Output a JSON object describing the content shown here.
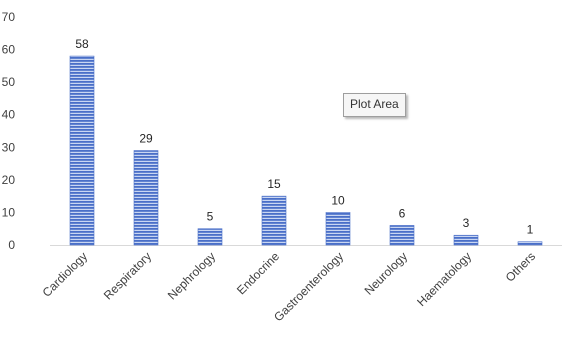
{
  "chart_data": {
    "type": "bar",
    "categories": [
      "Cardiology",
      "Respiratory",
      "Nephrology",
      "Endocrine",
      "Gastroenterology",
      "Neurology",
      "Haematology",
      "Others"
    ],
    "values": [
      58,
      29,
      5,
      15,
      10,
      6,
      3,
      1
    ],
    "title": "",
    "xlabel": "",
    "ylabel": "",
    "ylim": [
      0,
      70
    ],
    "yticks": [
      0,
      10,
      20,
      30,
      40,
      50,
      60,
      70
    ],
    "grid": false,
    "legend": "none",
    "data_labels": true,
    "bar_color": "#4a6fc8",
    "bar_stripe_color": "#c9d6f2"
  },
  "tooltip": {
    "text": "Plot Area"
  }
}
